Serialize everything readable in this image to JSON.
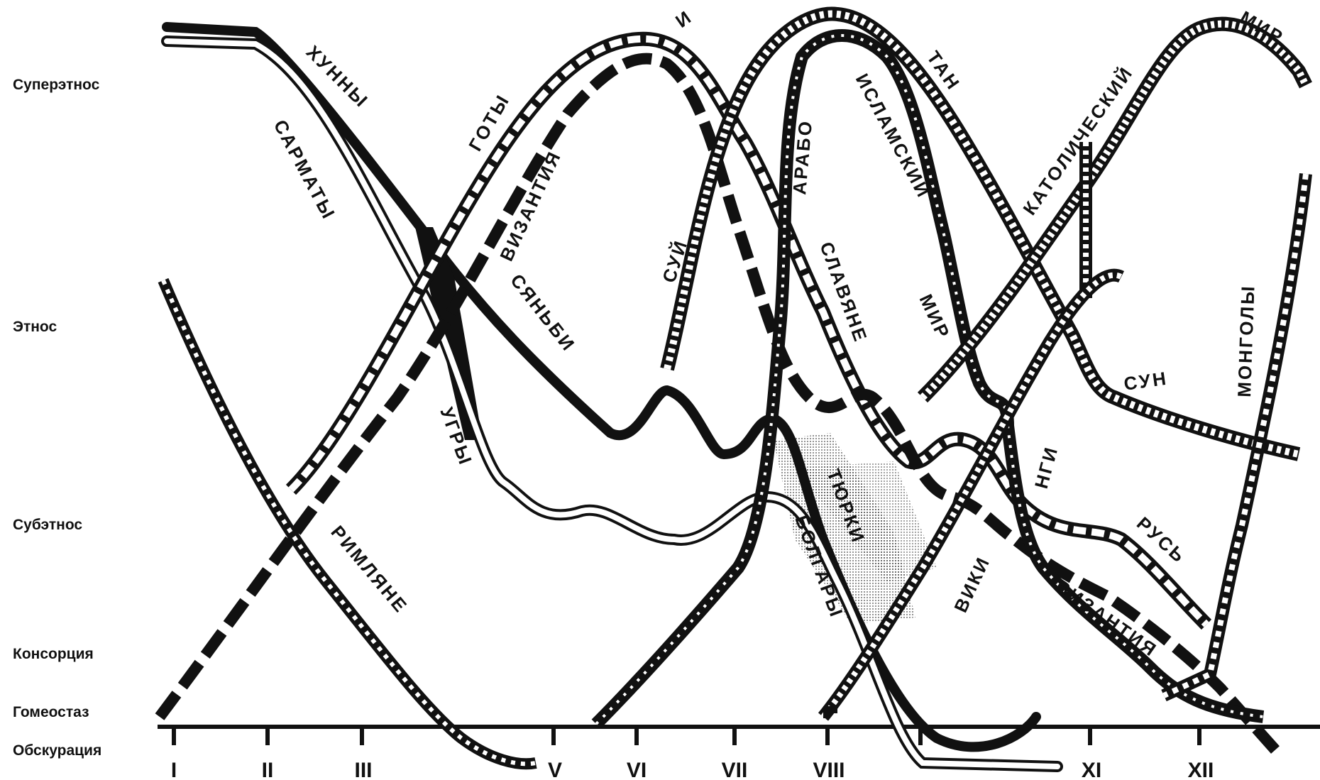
{
  "levels": [
    "Суперэтнос",
    "Этнос",
    "Субэтнос",
    "Консорция",
    "Гомеостаз",
    "Обскурация"
  ],
  "centuries": [
    "I",
    "II",
    "III",
    "V",
    "VI",
    "VII",
    "VIII",
    "XI",
    "XII"
  ],
  "labels": {
    "hunny": "ХУННЫ",
    "sarmaty": "САРМАТЫ",
    "goty": "ГОТЫ",
    "vizantiya": "ВИЗАНТИЯ",
    "syanbi": "СЯНЬБИ",
    "ugry": "УГРЫ",
    "rimlyane": "РИМЛЯНЕ",
    "suy": "СУЙ",
    "i": "И",
    "arabo": "АРАБО",
    "islamsky": "ИСЛАМСКИЙ",
    "mir1": "МИР",
    "tan": "ТАН",
    "slavyane": "СЛАВЯНЕ",
    "katolichesky": "КАТОЛИЧЕСКИЙ",
    "mir2": "МИР",
    "mongoly": "МОНГОЛЫ",
    "sun": "СУН",
    "ngi": "НГИ",
    "viki": "ВИКИ",
    "tyurki": "ТЮРКИ",
    "bolgary": "БОЛГАРЫ",
    "rus": "РУСЬ",
    "vizantiya2": "ВИЗАНТИЯ"
  },
  "colors": {
    "ink": "#111111",
    "paper": "#ffffff",
    "shade": "#9a9a9a"
  }
}
